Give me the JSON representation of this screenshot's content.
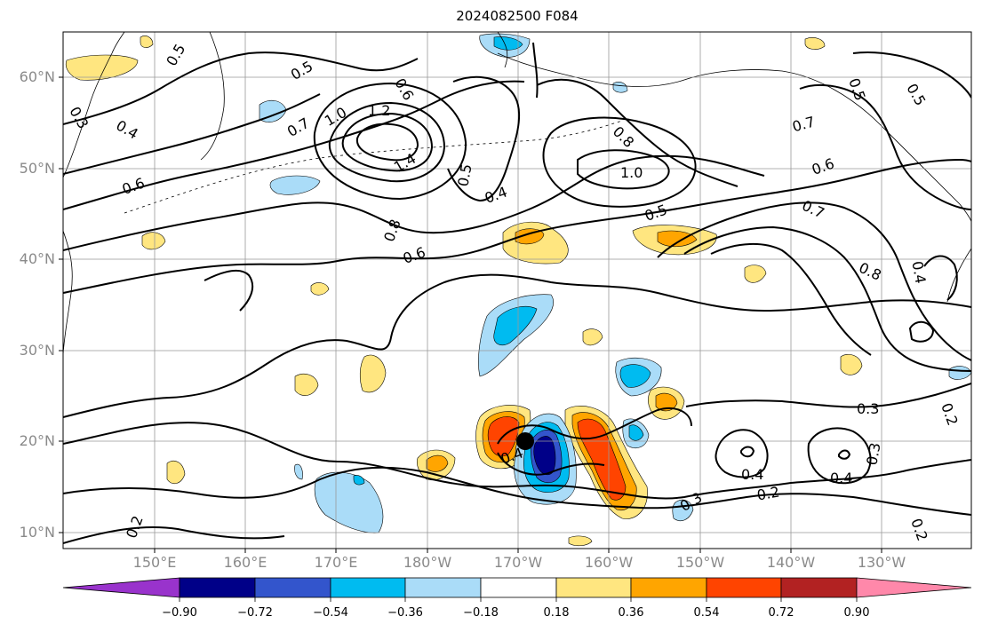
{
  "title": "2024082500 F084",
  "map": {
    "lat_labels": [
      "60°N",
      "50°N",
      "40°N",
      "30°N",
      "20°N",
      "10°N"
    ],
    "lon_labels": [
      "150°E",
      "160°E",
      "170°E",
      "180°W",
      "170°W",
      "160°W",
      "150°W",
      "140°W",
      "130°W"
    ],
    "contour_labels": [
      "0.5",
      "0.5",
      "0.5",
      "0.4",
      "0.3",
      "0.6",
      "0.7",
      "1.0",
      "1.2",
      "1.4",
      "0.6",
      "0.5",
      "0.8",
      "0.4",
      "1.0",
      "0.8",
      "0.7",
      "0.6",
      "0.5",
      "0.7",
      "0.8",
      "0.6",
      "0.5",
      "0.4",
      "0.3",
      "0.2",
      "0.4",
      "0.4",
      "0.3",
      "0.2",
      "0.4",
      "0.3",
      "0.2",
      "0.2"
    ],
    "storm_marker": {
      "lat": 20.0,
      "lon": -169.0
    }
  },
  "colorbar": {
    "tick_labels": [
      "−0.90",
      "−0.72",
      "−0.54",
      "−0.36",
      "−0.18",
      "0.18",
      "0.36",
      "0.54",
      "0.72",
      "0.90"
    ],
    "colors": [
      "#9933cc",
      "#000088",
      "#3355cc",
      "#00bbf0",
      "#aadcf8",
      "#ffffff",
      "#ffe680",
      "#ffa500",
      "#ff4400",
      "#b22222",
      "#ff88aa"
    ]
  }
}
